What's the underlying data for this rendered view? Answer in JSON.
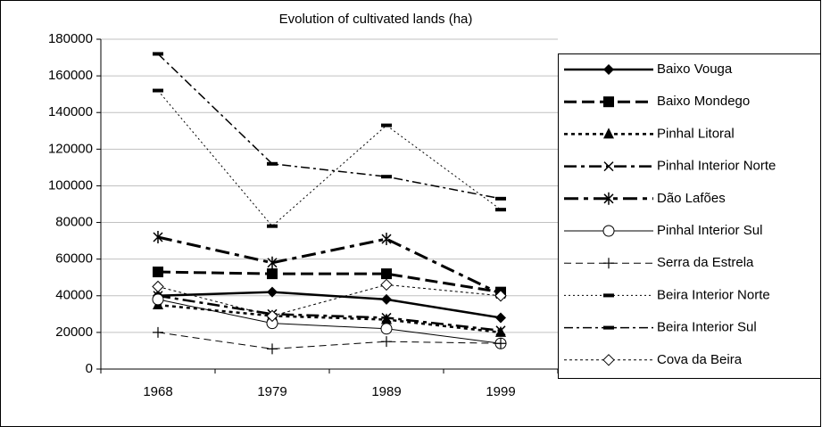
{
  "chart_data": {
    "type": "line",
    "title": "Evolution of cultivated lands (ha)",
    "categories": [
      "1968",
      "1979",
      "1989",
      "1999"
    ],
    "ylim": [
      0,
      180000
    ],
    "yticks": [
      0,
      20000,
      40000,
      60000,
      80000,
      100000,
      120000,
      140000,
      160000,
      180000
    ],
    "grid": true,
    "series": [
      {
        "name": "Baixo Vouga",
        "color": "#000000",
        "values": [
          40000,
          42000,
          38000,
          28000
        ]
      },
      {
        "name": "Baixo Mondego",
        "color": "#000000",
        "values": [
          53000,
          52000,
          52000,
          42000
        ]
      },
      {
        "name": "Pinhal Litoral",
        "color": "#000000",
        "values": [
          35000,
          29000,
          27000,
          20000
        ]
      },
      {
        "name": "Pinhal Interior Norte",
        "color": "#000000",
        "values": [
          40000,
          30000,
          28000,
          21000
        ]
      },
      {
        "name": "Dão Lafões",
        "color": "#000000",
        "values": [
          72000,
          58000,
          71000,
          41000
        ]
      },
      {
        "name": "Pinhal Interior Sul",
        "color": "#000000",
        "values": [
          38000,
          25000,
          22000,
          14000
        ]
      },
      {
        "name": "Serra da Estrela",
        "color": "#000000",
        "values": [
          20000,
          11000,
          15000,
          14000
        ]
      },
      {
        "name": "Beira Interior Norte",
        "color": "#000000",
        "values": [
          152000,
          78000,
          133000,
          87000
        ]
      },
      {
        "name": "Beira Interior Sul",
        "color": "#000000",
        "values": [
          172000,
          112000,
          105000,
          93000
        ]
      },
      {
        "name": "Cova da Beira",
        "color": "#000000",
        "values": [
          45000,
          29000,
          46000,
          40000
        ]
      }
    ]
  }
}
